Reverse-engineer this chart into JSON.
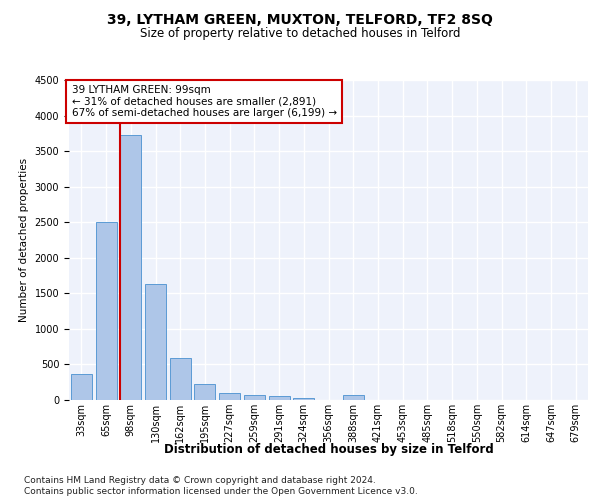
{
  "title": "39, LYTHAM GREEN, MUXTON, TELFORD, TF2 8SQ",
  "subtitle": "Size of property relative to detached houses in Telford",
  "xlabel": "Distribution of detached houses by size in Telford",
  "ylabel": "Number of detached properties",
  "footer_line1": "Contains HM Land Registry data © Crown copyright and database right 2024.",
  "footer_line2": "Contains public sector information licensed under the Open Government Licence v3.0.",
  "categories": [
    "33sqm",
    "65sqm",
    "98sqm",
    "130sqm",
    "162sqm",
    "195sqm",
    "227sqm",
    "259sqm",
    "291sqm",
    "324sqm",
    "356sqm",
    "388sqm",
    "421sqm",
    "453sqm",
    "485sqm",
    "518sqm",
    "550sqm",
    "582sqm",
    "614sqm",
    "647sqm",
    "679sqm"
  ],
  "values": [
    370,
    2510,
    3720,
    1630,
    590,
    225,
    105,
    65,
    50,
    35,
    0,
    65,
    0,
    0,
    0,
    0,
    0,
    0,
    0,
    0,
    0
  ],
  "bar_color": "#aec6e8",
  "bar_edge_color": "#5b9bd5",
  "highlight_bar_index": 2,
  "highlight_line_color": "#cc0000",
  "annotation_line1": "39 LYTHAM GREEN: 99sqm",
  "annotation_line2": "← 31% of detached houses are smaller (2,891)",
  "annotation_line3": "67% of semi-detached houses are larger (6,199) →",
  "annotation_box_color": "#ffffff",
  "annotation_box_edge_color": "#cc0000",
  "annotation_fontsize": 7.5,
  "ylim": [
    0,
    4500
  ],
  "background_color": "#eef2fb",
  "grid_color": "#ffffff",
  "title_fontsize": 10,
  "subtitle_fontsize": 8.5,
  "xlabel_fontsize": 8.5,
  "ylabel_fontsize": 7.5,
  "tick_fontsize": 7,
  "footer_fontsize": 6.5
}
